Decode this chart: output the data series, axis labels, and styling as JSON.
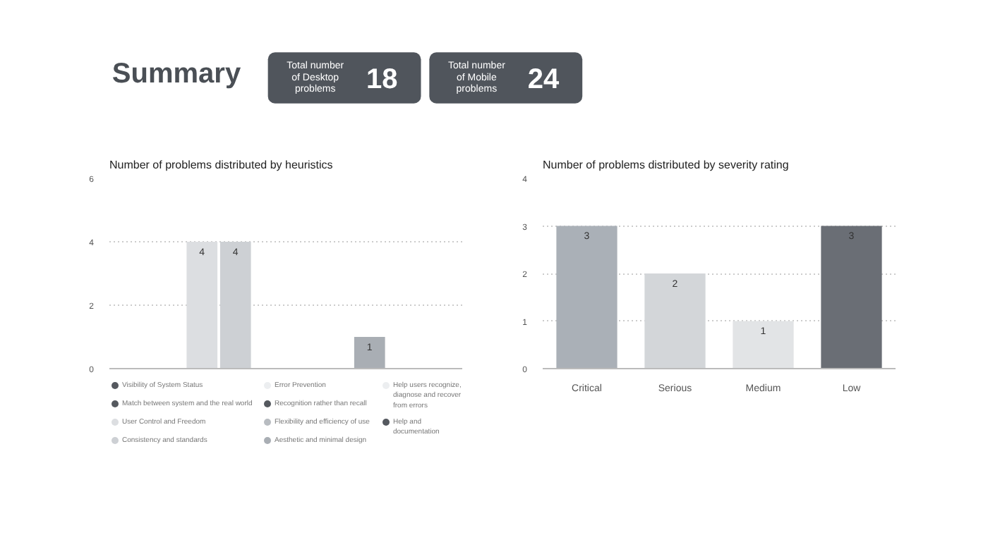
{
  "chart_data": [
    {
      "type": "other",
      "title": "Summary",
      "categories": [
        "Total number of Desktop problems",
        "Total number of Mobile problems"
      ],
      "values": [
        18,
        24
      ],
      "colors": [
        "#50555c",
        "#50555c"
      ],
      "data_labels": true
    },
    {
      "type": "bar",
      "title": "Number of problems distributed by heuristics",
      "categories": [
        null
      ],
      "ylim": [
        0,
        6
      ],
      "yticks": [
        0,
        2,
        4,
        6
      ],
      "grid": "y",
      "tick_labels": "y",
      "legend": "bottom",
      "series": [
        {
          "name": "Visibility of System Status",
          "color": "#55595f",
          "values": [
            0
          ]
        },
        {
          "name": "Match between system and the real world",
          "color": "#55595f",
          "values": [
            0
          ]
        },
        {
          "name": "User Control and Freedom",
          "color": "#dcdee1",
          "values": [
            4
          ],
          "value_labels": [
            "4"
          ]
        },
        {
          "name": "Consistency and standards",
          "color": "#cdd0d4",
          "values": [
            4
          ],
          "value_labels": [
            "4"
          ]
        },
        {
          "name": "Error Prevention",
          "color": "#eceef0",
          "values": [
            0
          ]
        },
        {
          "name": "Recognition rather than recall",
          "color": "#55595f",
          "values": [
            0
          ]
        },
        {
          "name": "Flexibility and efficiency of use",
          "color": "#b8bcc1",
          "values": [
            0
          ]
        },
        {
          "name": "Aesthetic and minimal design",
          "color": "#a9aeb4",
          "values": [
            1
          ],
          "value_labels": [
            "1"
          ]
        },
        {
          "name": "Help users recognize, diagnose and recover from errors",
          "color": "#eceef0",
          "values": [
            0
          ]
        },
        {
          "name": "Help and documentation",
          "color": "#55595f",
          "values": [
            0
          ]
        }
      ]
    },
    {
      "type": "bar",
      "title": "Number of problems distributed by severity rating",
      "categories": [
        "Critical",
        "Serious",
        "Medium",
        "Low"
      ],
      "values": [
        3,
        2,
        1,
        3
      ],
      "colors": [
        "#aab0b7",
        "#d3d6d9",
        "#e2e4e6",
        "#6a6e75"
      ],
      "ylim": [
        0,
        4
      ],
      "yticks": [
        0,
        1,
        2,
        3,
        4
      ],
      "grid": "y",
      "data_labels": true
    }
  ]
}
